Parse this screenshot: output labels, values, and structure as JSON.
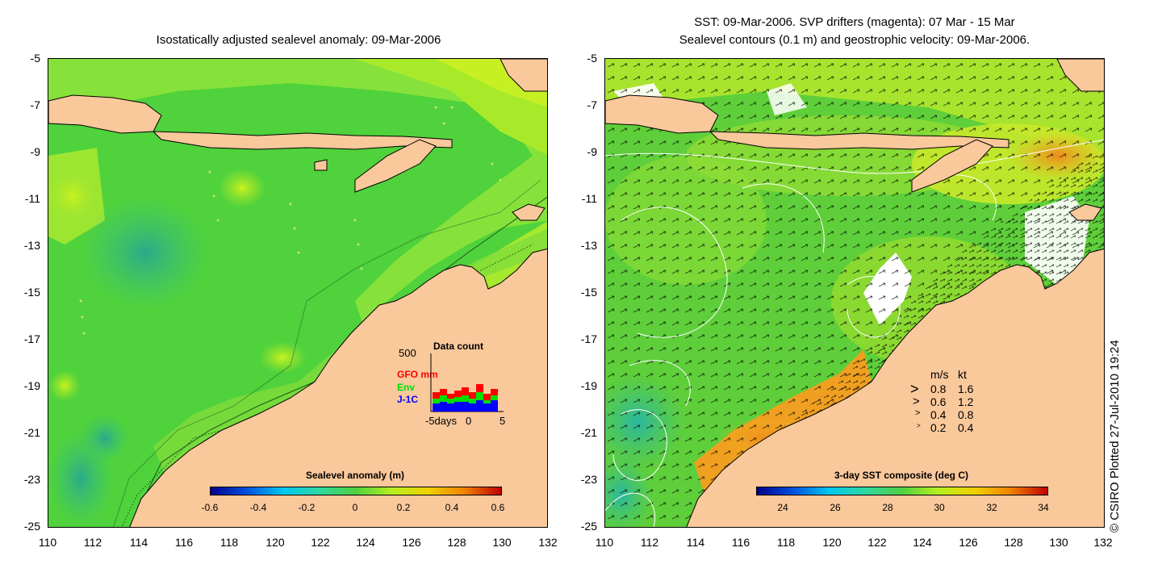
{
  "left_panel": {
    "title": "Isostatically adjusted sealevel anomaly: 09-Mar-2006",
    "colorbar": {
      "title": "Sealevel anomaly (m)",
      "labels": [
        "-0.6",
        "-0.4",
        "-0.2",
        "0",
        "0.2",
        "0.4",
        "0.6"
      ]
    },
    "inset": {
      "title": "Data count",
      "y_label": "500",
      "series": [
        {
          "name": "GFO mm",
          "color": "#ff0000"
        },
        {
          "name": "Env",
          "color": "#00dd00"
        },
        {
          "name": "J-1C",
          "color": "#0000ff"
        }
      ],
      "x_labels": [
        "-5days",
        "0",
        "5"
      ]
    }
  },
  "right_panel": {
    "title_line1": "SST: 09-Mar-2006. SVP drifters (magenta): 07 Mar - 15 Mar",
    "title_line2": "Sealevel contours (0.1 m) and geostrophic velocity: 09-Mar-2006.",
    "colorbar": {
      "title": "3-day SST composite (deg C)",
      "labels": [
        "24",
        "26",
        "28",
        "30",
        "32",
        "34"
      ]
    },
    "velocity_key": {
      "header_ms": "m/s",
      "header_kt": "kt",
      "rows": [
        {
          "ms": "0.8",
          "kt": "1.6"
        },
        {
          "ms": "0.6",
          "kt": "1.2"
        },
        {
          "ms": "0.4",
          "kt": "0.8"
        },
        {
          "ms": "0.2",
          "kt": "0.4"
        }
      ]
    }
  },
  "axes": {
    "y_ticks": [
      "-5",
      "-7",
      "-9",
      "-11",
      "-13",
      "-15",
      "-17",
      "-19",
      "-21",
      "-23",
      "-25"
    ],
    "x_ticks": [
      "110",
      "112",
      "114",
      "116",
      "118",
      "120",
      "122",
      "124",
      "126",
      "128",
      "130",
      "132"
    ]
  },
  "credit": "© CSIRO Plotted 27-Jul-2010 19:24",
  "colors": {
    "land": "#f9c89b",
    "sea_mid": "#55d43a",
    "sea_low": "#2fb88a",
    "sea_high": "#c8f023",
    "sst_warm": "#f09020"
  }
}
